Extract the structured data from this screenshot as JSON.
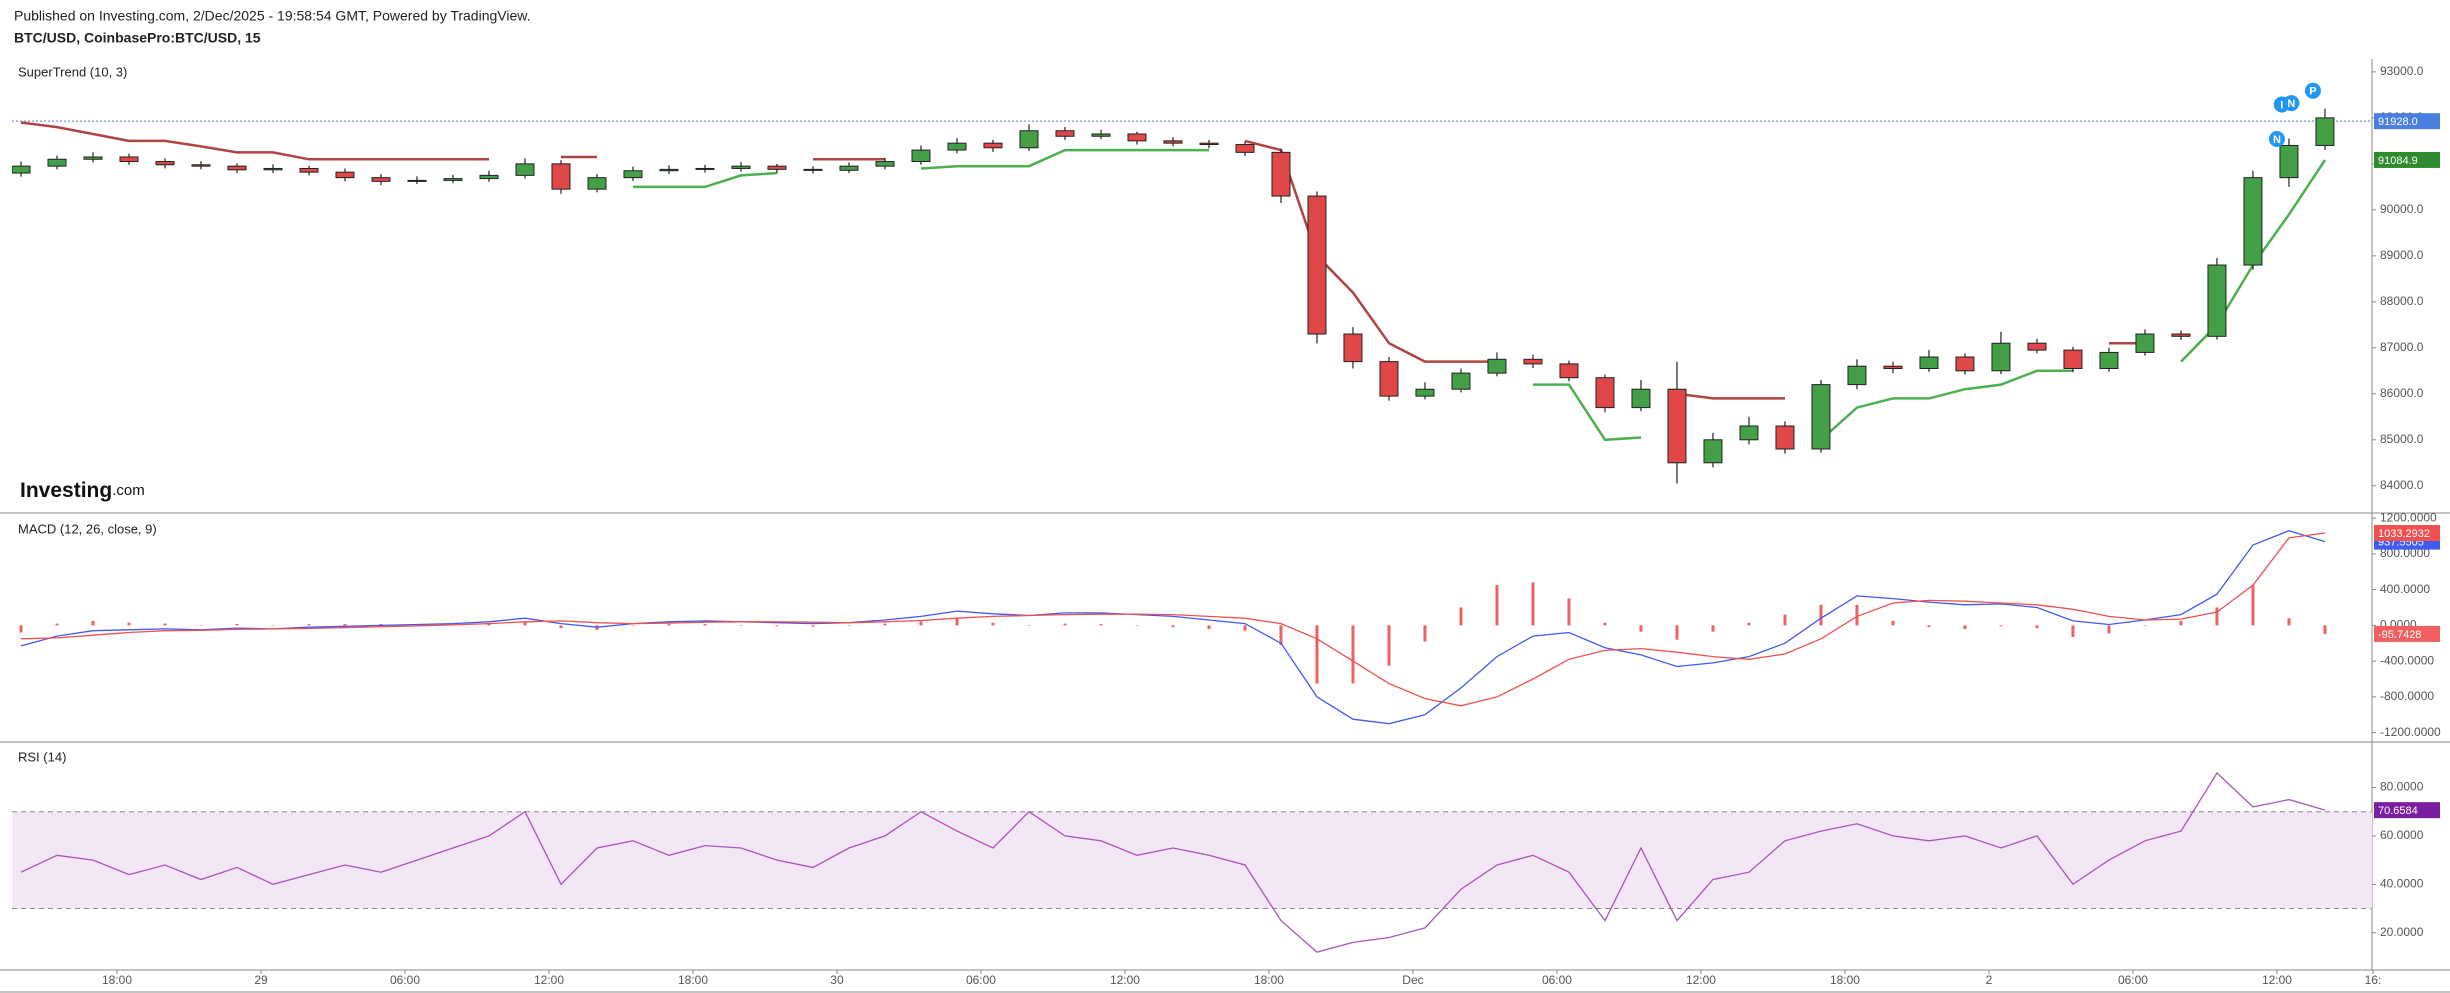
{
  "header": {
    "published": "Published on Investing.com, 2/Dec/2025 - 19:58:54 GMT, Powered by TradingView.",
    "symbol": "BTC/USD, CoinbasePro:BTC/USD, 15",
    "logo_main": "Investing",
    "logo_suffix": ".com"
  },
  "chart_data": [
    {
      "type": "candlestick",
      "title": "SuperTrend (10, 3)",
      "x": [
        14,
        15.5,
        17,
        18.5,
        20,
        21.5,
        23,
        24.5,
        26,
        27.5,
        29,
        30.5,
        32,
        33.5,
        35,
        36.5,
        38,
        39.5,
        41,
        42.5,
        44,
        45.5,
        47,
        48.5,
        50,
        51.5,
        53,
        54.5,
        56,
        57.5,
        59,
        60.5,
        62,
        63.5,
        65,
        66.5,
        68,
        69.5,
        71,
        72.5,
        74,
        75.5,
        77,
        78.5,
        80,
        81.5,
        83,
        84.5,
        86,
        87.5,
        89,
        90.5,
        92,
        93.5,
        95,
        96.5,
        98,
        99.5,
        101,
        102.5,
        104,
        105.5,
        107,
        108.5,
        110
      ],
      "open": [
        90800,
        90950,
        91100,
        91150,
        91050,
        90980,
        90950,
        90870,
        90900,
        90820,
        90700,
        90620,
        90640,
        90680,
        90750,
        91000,
        90450,
        90700,
        90850,
        90880,
        90900,
        90950,
        90880,
        90860,
        90950,
        91050,
        91300,
        91450,
        91350,
        91720,
        91600,
        91650,
        91500,
        91450,
        91420,
        91250,
        90300,
        87300,
        86700,
        85950,
        86100,
        86450,
        86750,
        86650,
        86350,
        85700,
        86100,
        84500,
        85000,
        85300,
        84800,
        86200,
        86600,
        86550,
        86800,
        86500,
        87100,
        86950,
        86550,
        86900,
        87300,
        87250,
        88800,
        90700,
        91400
      ],
      "high": [
        91050,
        91180,
        91250,
        91220,
        91120,
        91060,
        91010,
        90990,
        90960,
        90900,
        90780,
        90730,
        90760,
        90850,
        91120,
        91080,
        90780,
        90940,
        90970,
        90980,
        91040,
        91000,
        90950,
        91030,
        91130,
        91400,
        91560,
        91520,
        91860,
        91800,
        91740,
        91700,
        91580,
        91520,
        91490,
        91330,
        90400,
        87450,
        86800,
        86250,
        86550,
        86900,
        86850,
        86720,
        86420,
        86300,
        86700,
        85150,
        85500,
        85400,
        86300,
        86750,
        86700,
        86950,
        86880,
        87350,
        87200,
        87020,
        87000,
        87400,
        87380,
        88950,
        90850,
        91550,
        92200
      ],
      "low": [
        90720,
        90880,
        91030,
        90980,
        90900,
        90880,
        90800,
        90800,
        90750,
        90620,
        90540,
        90560,
        90580,
        90610,
        90680,
        90350,
        90380,
        90630,
        90780,
        90810,
        90830,
        90800,
        90790,
        90800,
        90880,
        90980,
        91230,
        91260,
        91280,
        91520,
        91540,
        91420,
        91380,
        91340,
        91170,
        90150,
        87100,
        86550,
        85850,
        85880,
        86030,
        86380,
        86560,
        86270,
        85600,
        85620,
        84050,
        84400,
        84900,
        84700,
        84720,
        86100,
        86450,
        86480,
        86420,
        86430,
        86880,
        86470,
        86480,
        86830,
        87170,
        87180,
        88700,
        90500,
        91300
      ],
      "close": [
        90950,
        91100,
        91150,
        91050,
        90980,
        90950,
        90870,
        90900,
        90820,
        90700,
        90620,
        90640,
        90680,
        90750,
        91000,
        90450,
        90700,
        90850,
        90880,
        90900,
        90950,
        90880,
        90860,
        90950,
        91050,
        91300,
        91450,
        91350,
        91720,
        91600,
        91650,
        91500,
        91450,
        91420,
        91250,
        90300,
        87300,
        86700,
        85950,
        86100,
        86450,
        86750,
        86650,
        86350,
        85700,
        86100,
        84500,
        85000,
        85300,
        84800,
        86200,
        86600,
        86550,
        86800,
        86500,
        87100,
        86950,
        86550,
        86900,
        87300,
        87250,
        88800,
        90700,
        91400,
        92000
      ],
      "up_color": "#43a047",
      "down_color": "#e04848",
      "overlays": [
        {
          "color": "#b04444",
          "values": [
            91900,
            91800,
            91650,
            91500,
            91500,
            91380,
            91250,
            91250,
            91100,
            91100,
            91100,
            91100,
            91100,
            91100,
            null,
            91150,
            91150,
            null,
            null,
            null,
            null,
            null,
            91100,
            91100,
            91100,
            null,
            null,
            null,
            null,
            null,
            null,
            null,
            null,
            null,
            91500,
            91300,
            89000,
            88200,
            87100,
            86700,
            86700,
            86700,
            null,
            null,
            null,
            null,
            86000,
            85900,
            85900,
            85900,
            null,
            null,
            null,
            null,
            null,
            null,
            null,
            null,
            87100,
            87100,
            null,
            null,
            null,
            null,
            null
          ]
        },
        {
          "color": "#4caf50",
          "last_label_color": "#2e8b2e",
          "values": [
            null,
            null,
            null,
            null,
            null,
            null,
            null,
            null,
            null,
            null,
            null,
            null,
            null,
            null,
            90700,
            null,
            null,
            90500,
            90500,
            90500,
            90750,
            90800,
            null,
            null,
            null,
            90900,
            90950,
            90950,
            90950,
            91300,
            91300,
            91300,
            91300,
            91300,
            null,
            null,
            null,
            null,
            null,
            null,
            null,
            null,
            86200,
            86200,
            85000,
            85050,
            null,
            null,
            null,
            null,
            85000,
            85700,
            85900,
            85900,
            86100,
            86200,
            86500,
            86500,
            null,
            null,
            86700,
            87500,
            88800,
            89900,
            91084.9
          ]
        }
      ],
      "price_line": {
        "value": 91928,
        "label": "91928.0",
        "color": "#4a7fe0"
      },
      "signals": [
        {
          "label": "N",
          "x": 108.0,
          "y": 91540
        },
        {
          "label": "I",
          "x": 108.2,
          "y": 92290
        },
        {
          "label": "N",
          "x": 108.6,
          "y": 92320
        },
        {
          "label": "P",
          "x": 109.5,
          "y": 92590
        }
      ],
      "signal_color": "#2196f3",
      "xlim": [
        13.625,
        111.96
      ],
      "xticks": [
        {
          "value": 18,
          "label": "18:00"
        },
        {
          "value": 24,
          "label": "29"
        },
        {
          "value": 30,
          "label": "06:00"
        },
        {
          "value": 36,
          "label": "12:00"
        },
        {
          "value": 42,
          "label": "18:00"
        },
        {
          "value": 48,
          "label": "30"
        },
        {
          "value": 54,
          "label": "06:00"
        },
        {
          "value": 60,
          "label": "12:00"
        },
        {
          "value": 66,
          "label": "18:00"
        },
        {
          "value": 72,
          "label": "Dec"
        },
        {
          "value": 78,
          "label": "06:00"
        },
        {
          "value": 84,
          "label": "12:00"
        },
        {
          "value": 90,
          "label": "18:00"
        },
        {
          "value": 96,
          "label": "2"
        },
        {
          "value": 102,
          "label": "06:00"
        },
        {
          "value": 108,
          "label": "12:00"
        },
        {
          "value": 112,
          "label": "16:"
        }
      ],
      "ylim": [
        83430,
        93280
      ],
      "yticks": [
        {
          "value": 84000,
          "label": "84000.0"
        },
        {
          "value": 85000,
          "label": "85000.0"
        },
        {
          "value": 86000,
          "label": "86000.0"
        },
        {
          "value": 87000,
          "label": "87000.0"
        },
        {
          "value": 88000,
          "label": "88000.0"
        },
        {
          "value": 89000,
          "label": "89000.0"
        },
        {
          "value": 90000,
          "label": "90000.0"
        },
        {
          "value": 91000,
          "label": "91000.0"
        },
        {
          "value": 92000,
          "label": "92000.0"
        },
        {
          "value": 93000,
          "label": "93000.0"
        }
      ]
    },
    {
      "type": "macd",
      "title": "MACD (12, 26, close, 9)",
      "series": [
        {
          "color": "#3f5bf0",
          "values": [
            -230,
            -120,
            -60,
            -50,
            -40,
            -50,
            -30,
            -40,
            -20,
            -10,
            0,
            10,
            20,
            40,
            80,
            20,
            -20,
            20,
            40,
            50,
            40,
            30,
            20,
            30,
            60,
            100,
            160,
            130,
            110,
            140,
            140,
            120,
            100,
            60,
            20,
            -200,
            -800,
            -1050,
            -1100,
            -1000,
            -700,
            -350,
            -120,
            -80,
            -250,
            -330,
            -460,
            -420,
            -350,
            -200,
            80,
            330,
            300,
            260,
            230,
            240,
            200,
            50,
            10,
            60,
            120,
            350,
            900,
            1060,
            937.5505
          ]
        },
        {
          "color": "#f05050",
          "values": [
            -150,
            -140,
            -110,
            -80,
            -60,
            -55,
            -45,
            -40,
            -35,
            -25,
            -15,
            -5,
            5,
            20,
            40,
            50,
            30,
            20,
            25,
            35,
            40,
            40,
            35,
            30,
            40,
            55,
            80,
            100,
            110,
            120,
            125,
            125,
            120,
            100,
            80,
            20,
            -150,
            -400,
            -650,
            -820,
            -900,
            -800,
            -600,
            -380,
            -280,
            -260,
            -300,
            -350,
            -380,
            -320,
            -150,
            100,
            250,
            280,
            270,
            250,
            230,
            180,
            100,
            60,
            70,
            150,
            450,
            980,
            1033.2932
          ]
        }
      ],
      "histogram": {
        "color": "#f06060",
        "values": [
          -80,
          20,
          50,
          30,
          20,
          5,
          15,
          0,
          15,
          15,
          15,
          15,
          15,
          20,
          40,
          -30,
          -50,
          0,
          15,
          15,
          0,
          -10,
          -15,
          0,
          20,
          45,
          80,
          30,
          0,
          20,
          15,
          -5,
          -20,
          -40,
          -60,
          -220,
          -650,
          -650,
          -450,
          -180,
          200,
          450,
          480,
          300,
          30,
          -70,
          -160,
          -70,
          30,
          120,
          230,
          230,
          50,
          -20,
          -40,
          -10,
          -30,
          -130,
          -90,
          0,
          50,
          200,
          450,
          80,
          -95.7428
        ]
      },
      "ylim": [
        -1294,
        1224
      ],
      "yticks": [
        {
          "value": -1200,
          "label": "-1200.0000"
        },
        {
          "value": -800,
          "label": "-800.0000"
        },
        {
          "value": -400,
          "label": "-400.0000"
        },
        {
          "value": 0,
          "label": "0.0000"
        },
        {
          "value": 400,
          "label": "400.0000"
        },
        {
          "value": 800,
          "label": "800.0000"
        },
        {
          "value": 1200,
          "label": "1200.0000"
        }
      ]
    },
    {
      "type": "rsi",
      "title": "RSI (14)",
      "color": "#a855b8",
      "last_label_color": "#7b1fa2",
      "band": [
        30,
        70
      ],
      "band_color": "#f3e6f5",
      "values": [
        45,
        52,
        50,
        44,
        48,
        42,
        47,
        40,
        44,
        48,
        45,
        50,
        55,
        60,
        70,
        40,
        55,
        58,
        52,
        56,
        55,
        50,
        47,
        55,
        60,
        70,
        62,
        55,
        70,
        60,
        58,
        52,
        55,
        52,
        48,
        25,
        12,
        16,
        18,
        22,
        38,
        48,
        52,
        45,
        25,
        55,
        25,
        42,
        45,
        58,
        62,
        65,
        60,
        58,
        60,
        55,
        60,
        40,
        50,
        58,
        62,
        86,
        72,
        75,
        70.6584
      ],
      "ylim": [
        5,
        98
      ],
      "yticks": [
        {
          "value": 20,
          "label": "20.0000"
        },
        {
          "value": 40,
          "label": "40.0000"
        },
        {
          "value": 60,
          "label": "60.0000"
        },
        {
          "value": 80,
          "label": "80.0000"
        }
      ]
    }
  ]
}
